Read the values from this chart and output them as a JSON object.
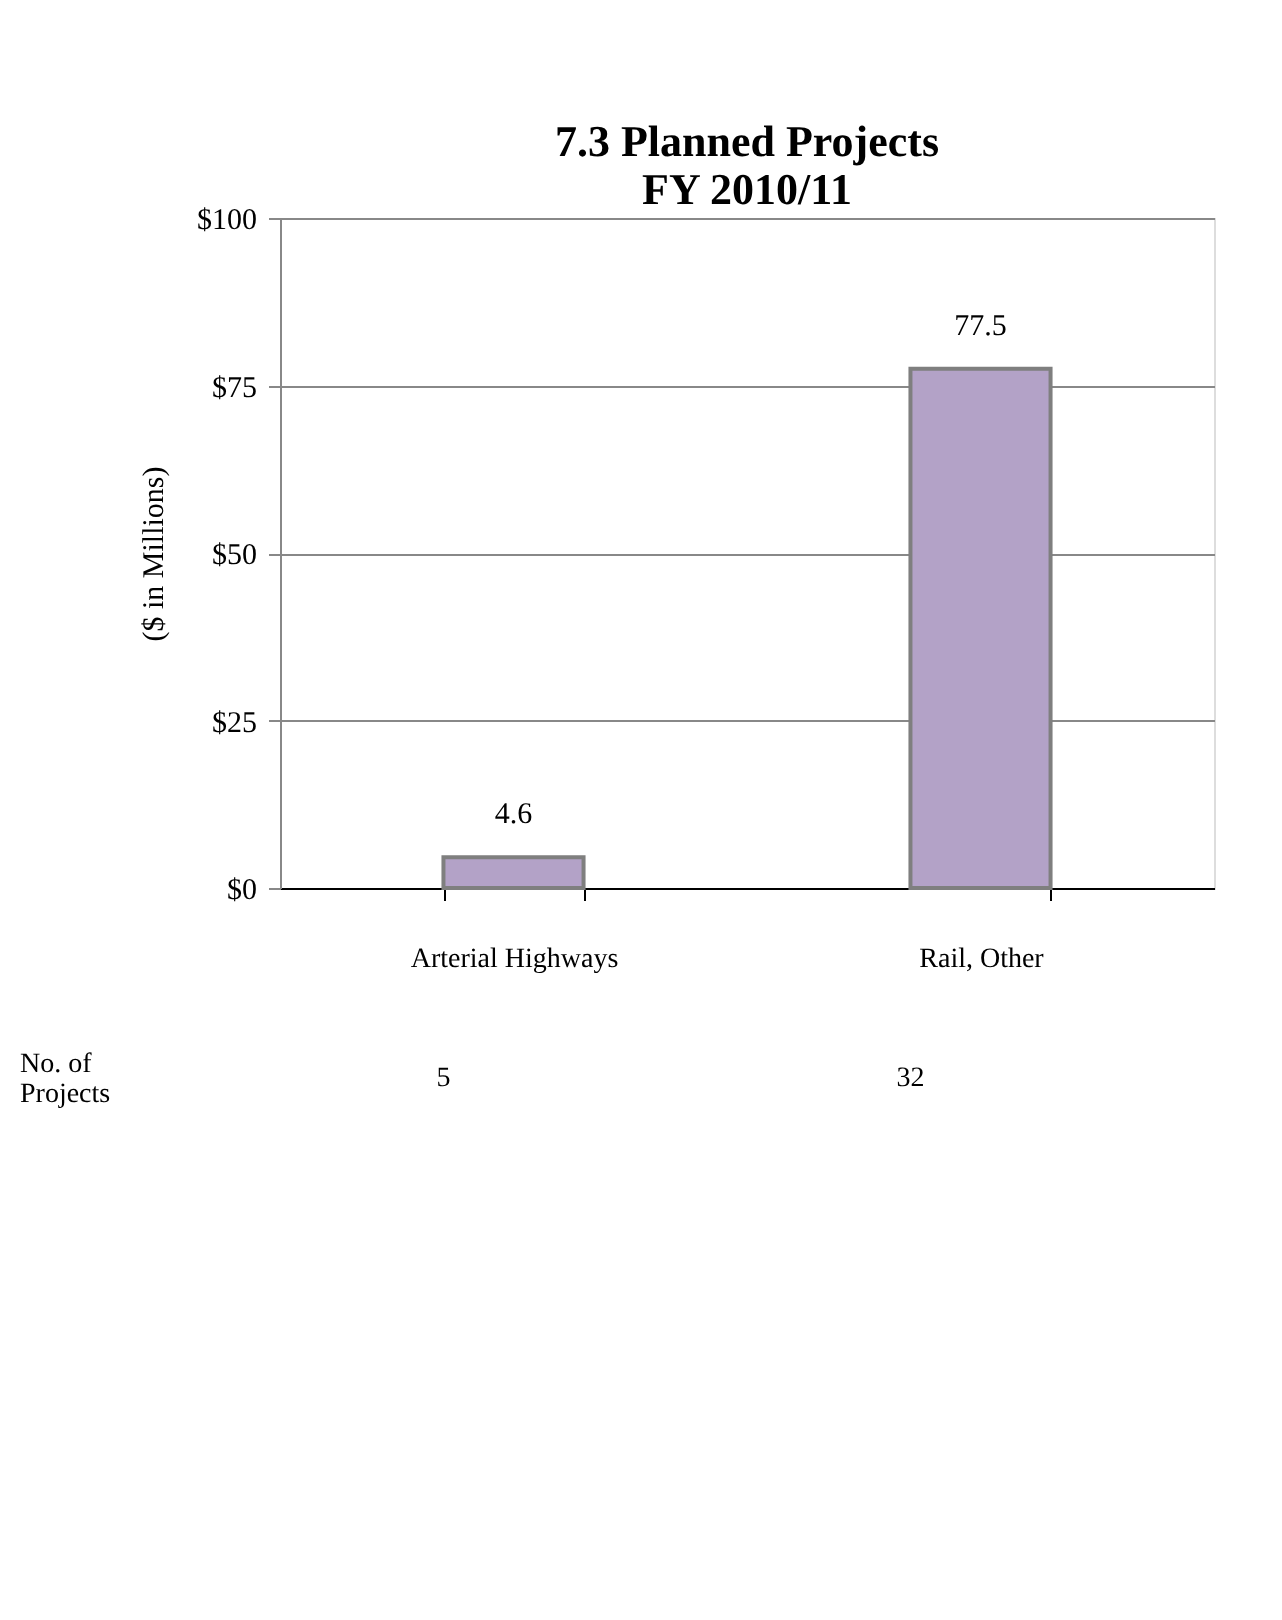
{
  "chart_data": {
    "type": "bar",
    "title": "7.3 Planned Projects\nFY 2010/11",
    "ylabel": "($ in Millions)",
    "categories": [
      "Arterial Highways",
      "Rail, Other"
    ],
    "values": [
      4.6,
      77.5
    ],
    "color": "#b3a2c7",
    "ylim": [
      0,
      100
    ],
    "yticks": [
      {
        "value": 0,
        "label": "$0"
      },
      {
        "value": 25,
        "label": "$25"
      },
      {
        "value": 50,
        "label": "$50"
      },
      {
        "value": 75,
        "label": "$75"
      },
      {
        "value": 100,
        "label": "$100"
      }
    ],
    "grid": "y",
    "data_labels": true,
    "annotations": [
      "No. of\nProjects",
      "5",
      "32"
    ]
  }
}
